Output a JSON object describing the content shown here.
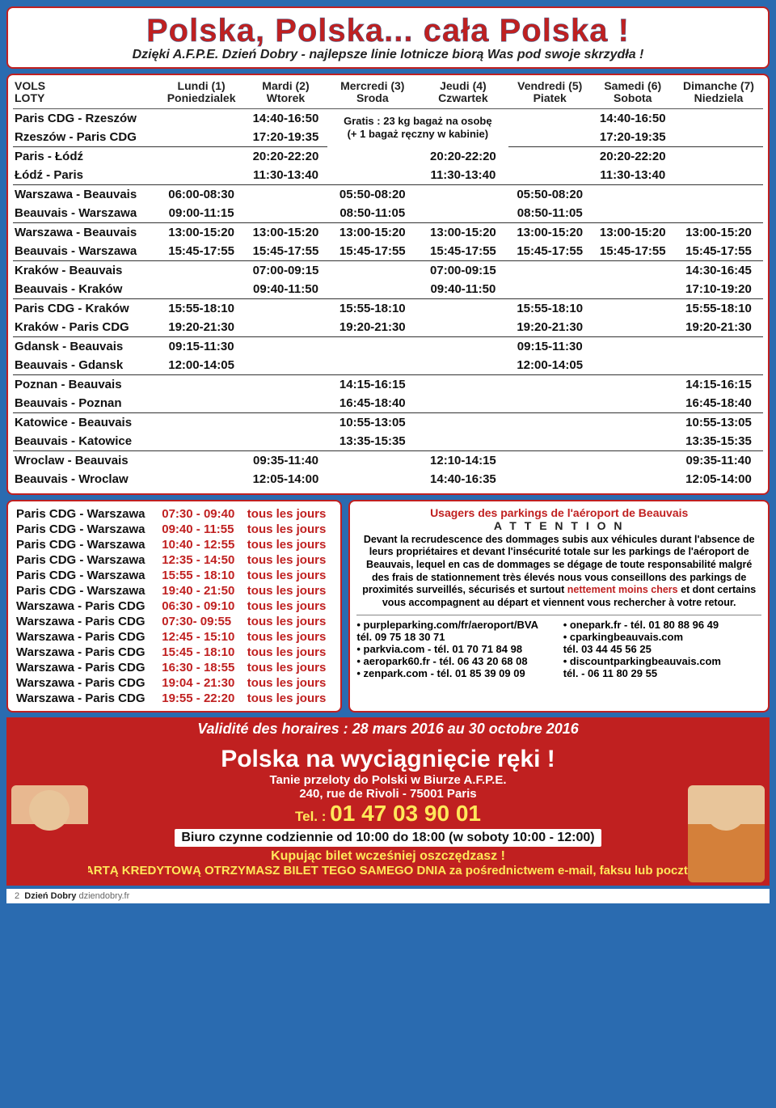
{
  "header": {
    "title": "Polska, Polska... cała Polska !",
    "subtitle": "Dzięki A.F.P.E. Dzień Dobry - najlepsze linie lotnicze biorą Was pod swoje skrzydła !"
  },
  "days": [
    {
      "fr": "Lundi (1)",
      "pl": "Poniedzialek"
    },
    {
      "fr": "Mardi (2)",
      "pl": "Wtorek"
    },
    {
      "fr": "Mercredi (3)",
      "pl": "Sroda"
    },
    {
      "fr": "Jeudi (4)",
      "pl": "Czwartek"
    },
    {
      "fr": "Vendredi (5)",
      "pl": "Piatek"
    },
    {
      "fr": "Samedi (6)",
      "pl": "Sobota"
    },
    {
      "fr": "Dimanche (7)",
      "pl": "Niedziela"
    }
  ],
  "routesHead": {
    "fr": "VOLS",
    "pl": "LOTY"
  },
  "note1": "Gratis : 23 kg bagaż na osobę",
  "note2": "(+ 1 bagaż ręczny w kabinie)",
  "rows": [
    {
      "r": "Paris CDG - Rzeszów",
      "d": [
        "",
        "14:40-16:50",
        "",
        "",
        "",
        "14:40-16:50",
        ""
      ],
      "noteRow": true
    },
    {
      "r": "Rzeszów - Paris CDG",
      "d": [
        "",
        "17:20-19:35",
        "",
        "",
        "",
        "17:20-19:35",
        ""
      ],
      "noteRow2": true,
      "sep": true
    },
    {
      "r": "Paris - Łódź",
      "d": [
        "",
        "20:20-22:20",
        "",
        "20:20-22:20",
        "",
        "20:20-22:20",
        ""
      ]
    },
    {
      "r": "Łódź - Paris",
      "d": [
        "",
        "11:30-13:40",
        "",
        "11:30-13:40",
        "",
        "11:30-13:40",
        ""
      ],
      "sep": true
    },
    {
      "r": "Warszawa - Beauvais",
      "d": [
        "06:00-08:30",
        "",
        "05:50-08:20",
        "",
        "05:50-08:20",
        "",
        ""
      ]
    },
    {
      "r": "Beauvais - Warszawa",
      "d": [
        "09:00-11:15",
        "",
        "08:50-11:05",
        "",
        "08:50-11:05",
        "",
        ""
      ],
      "sep": true
    },
    {
      "r": "Warszawa - Beauvais",
      "d": [
        "13:00-15:20",
        "13:00-15:20",
        "13:00-15:20",
        "13:00-15:20",
        "13:00-15:20",
        "13:00-15:20",
        "13:00-15:20"
      ]
    },
    {
      "r": "Beauvais - Warszawa",
      "d": [
        "15:45-17:55",
        "15:45-17:55",
        "15:45-17:55",
        "15:45-17:55",
        "15:45-17:55",
        "15:45-17:55",
        "15:45-17:55"
      ],
      "sep": true
    },
    {
      "r": "Kraków - Beauvais",
      "d": [
        "",
        "07:00-09:15",
        "",
        "07:00-09:15",
        "",
        "",
        "14:30-16:45"
      ]
    },
    {
      "r": "Beauvais - Kraków",
      "d": [
        "",
        "09:40-11:50",
        "",
        "09:40-11:50",
        "",
        "",
        "17:10-19:20"
      ],
      "sep": true
    },
    {
      "r": "Paris CDG - Kraków",
      "d": [
        "15:55-18:10",
        "",
        "15:55-18:10",
        "",
        "15:55-18:10",
        "",
        "15:55-18:10"
      ]
    },
    {
      "r": "Kraków - Paris CDG",
      "d": [
        "19:20-21:30",
        "",
        "19:20-21:30",
        "",
        "19:20-21:30",
        "",
        "19:20-21:30"
      ],
      "sep": true
    },
    {
      "r": "Gdansk - Beauvais",
      "d": [
        "09:15-11:30",
        "",
        "",
        "",
        "09:15-11:30",
        "",
        ""
      ]
    },
    {
      "r": "Beauvais - Gdansk",
      "d": [
        "12:00-14:05",
        "",
        "",
        "",
        "12:00-14:05",
        "",
        ""
      ],
      "sep": true
    },
    {
      "r": "Poznan - Beauvais",
      "d": [
        "",
        "",
        "14:15-16:15",
        "",
        "",
        "",
        "14:15-16:15"
      ]
    },
    {
      "r": "Beauvais - Poznan",
      "d": [
        "",
        "",
        "16:45-18:40",
        "",
        "",
        "",
        "16:45-18:40"
      ],
      "sep": true
    },
    {
      "r": "Katowice - Beauvais",
      "d": [
        "",
        "",
        "10:55-13:05",
        "",
        "",
        "",
        "10:55-13:05"
      ]
    },
    {
      "r": "Beauvais - Katowice",
      "d": [
        "",
        "",
        "13:35-15:35",
        "",
        "",
        "",
        "13:35-15:35"
      ],
      "sep": true
    },
    {
      "r": "Wroclaw - Beauvais",
      "d": [
        "",
        "09:35-11:40",
        "",
        "12:10-14:15",
        "",
        "",
        "09:35-11:40"
      ]
    },
    {
      "r": "Beauvais - Wroclaw",
      "d": [
        "",
        "12:05-14:00",
        "",
        "14:40-16:35",
        "",
        "",
        "12:05-14:00"
      ]
    }
  ],
  "daily": [
    [
      "Paris CDG  -  Warszawa",
      "07:30 - 09:40",
      "tous les jours"
    ],
    [
      "Paris CDG  -  Warszawa",
      "09:40 - 11:55",
      "tous les jours"
    ],
    [
      "Paris CDG  -  Warszawa",
      "10:40 - 12:55",
      "tous les jours"
    ],
    [
      "Paris CDG  -  Warszawa",
      "12:35 - 14:50",
      "tous les jours"
    ],
    [
      "Paris CDG  -  Warszawa",
      "15:55 - 18:10",
      "tous les jours"
    ],
    [
      "Paris CDG  -  Warszawa",
      "19:40 - 21:50",
      "tous les jours"
    ],
    [
      "Warszawa  -  Paris CDG",
      "06:30 - 09:10",
      "tous les jours"
    ],
    [
      "Warszawa  -  Paris CDG",
      "07:30- 09:55",
      "tous les jours"
    ],
    [
      "Warszawa  -  Paris CDG",
      "12:45 - 15:10",
      "tous les jours"
    ],
    [
      "Warszawa  -  Paris CDG",
      "15:45 - 18:10",
      "tous les jours"
    ],
    [
      "Warszawa  -  Paris CDG",
      "16:30 - 18:55",
      "tous les jours"
    ],
    [
      "Warszawa  -  Paris CDG",
      "19:04 - 21:30",
      "tous les jours"
    ],
    [
      "Warszawa  -  Paris CDG",
      "19:55 - 22:20",
      "tous les jours"
    ]
  ],
  "parking": {
    "title": "Usagers des parkings  de l'aéroport de Beauvais",
    "att": "A T T E N T I O N",
    "body1": "Devant la recrudescence des dommages subis aux véhicules durant l'absence de leurs propriétaires et devant l'insécurité totale sur les parkings de l'aéroport de Beauvais, lequel en cas de dommages se dégage de toute responsabilité malgré des frais de stationnement  très élevés nous vous conseillons des parkings de proximités surveillés,  sécurisés et surtout ",
    "hi": "nettement moins chers",
    "body2": " et dont certains vous accompagnent au départ et viennent vous rechercher à votre retour.",
    "left": [
      "• purpleparking.com/fr/aeroport/BVA",
      "   tél. 09 75 18 30 71",
      "• parkvia.com  - tél. 01 70 71 84 98",
      "• aeropark60.fr  - tél. 06 43 20 68 08",
      "• zenpark.com  - tél. 01 85 39 09 09"
    ],
    "right": [
      "• onepark.fr  - tél. 01 80 88 96 49",
      "• cparkingbeauvais.com",
      "   tél. 03 44 45 56 25",
      "• discountparkingbeauvais.com",
      "   tél. - 06 11 80 29 55"
    ]
  },
  "validity": "Validité des horaires : 28 mars 2016 au 30 octobre 2016",
  "promo": {
    "big": "Polska na wyciągnięcie ręki !",
    "l1": "Tanie przeloty do Polski w Biurze A.F.P.E.",
    "l2": "240, rue de Rivoli - 75001 Paris",
    "telLbl": "Tel. : ",
    "tel": "01 47 03 90 01",
    "office": "Biuro czynne codziennie od 10:00 do 18:00   (w soboty  10:00 - 12:00)",
    "save": "Kupując bilet wcześniej oszczędzasz !",
    "card": "PŁACĄC KARTĄ KREDYTOWĄ OTRZYMASZ BILET TEGO SAMEGO DNIA  za pośrednictwem e-mail, faksu lub pocztą nazajutrz."
  },
  "footer": {
    "page": "2",
    "brand": "Dzień Dobry",
    "site": "dziendobry.fr"
  }
}
